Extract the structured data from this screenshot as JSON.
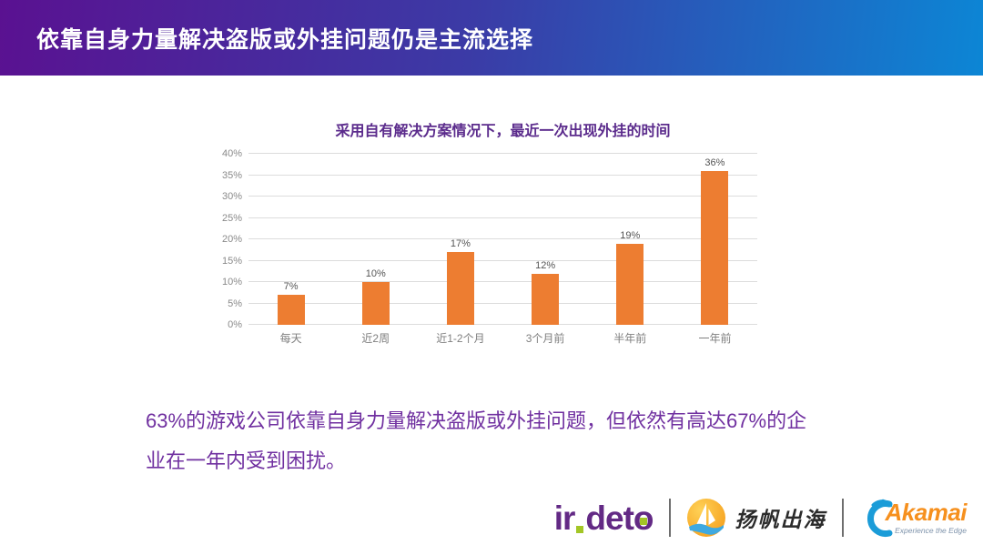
{
  "header": {
    "title": "依靠自身力量解决盗版或外挂问题仍是主流选择"
  },
  "chart_data": {
    "type": "bar",
    "title": "采用自有解决方案情况下，最近一次出现外挂的时间",
    "categories": [
      "每天",
      "近2周",
      "近1-2个月",
      "3个月前",
      "半年前",
      "一年前"
    ],
    "values": [
      7,
      10,
      17,
      12,
      19,
      36
    ],
    "value_labels": [
      "7%",
      "10%",
      "17%",
      "12%",
      "19%",
      "36%"
    ],
    "ylim": [
      0,
      40
    ],
    "ytick_step": 5,
    "ytick_labels": [
      "0%",
      "5%",
      "10%",
      "15%",
      "20%",
      "25%",
      "30%",
      "35%",
      "40%"
    ],
    "grid": true,
    "legend": "none",
    "bar_color": "#ed7d31",
    "title_color": "#5b2b8c"
  },
  "summary": {
    "lines": [
      "63%的游戏公司依靠自身力量解决盗版或外挂问题，但依然有高达67%的企",
      "业在一年内受到困扰。"
    ],
    "text_color": "#7030a0"
  },
  "footer": {
    "irdeto": {
      "part1": "ir",
      "part2": "det",
      "part3": "o"
    },
    "yangfan": {
      "text": "扬帆出海"
    },
    "akamai": {
      "word": "Akamai",
      "tagline": "Experience the Edge"
    }
  },
  "colors": {
    "banner_gradient_start": "#5a1191",
    "banner_gradient_end": "#0c86d5",
    "irdeto_purple": "#632a85",
    "irdeto_green": "#a3c626",
    "akamai_orange": "#f6901e",
    "akamai_blue": "#1b9cd8"
  }
}
